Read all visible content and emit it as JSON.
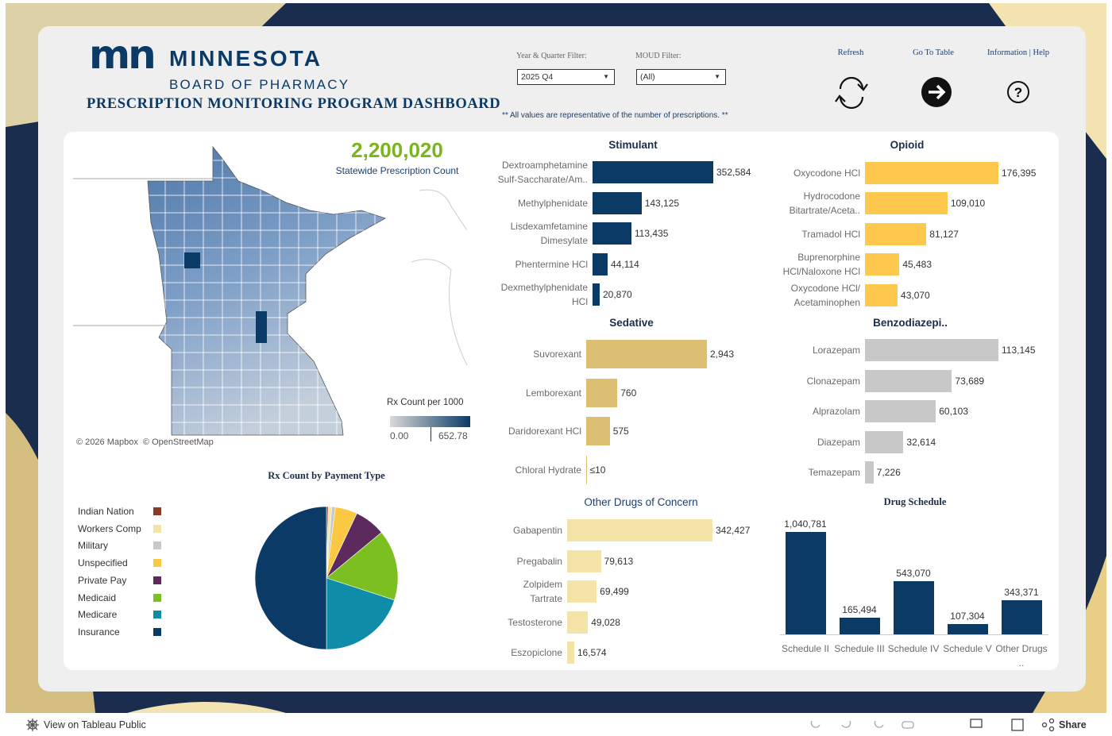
{
  "header": {
    "logo_mark": "mn",
    "logo_text": "MINNESOTA",
    "subtitle": "BOARD OF PHARMACY",
    "title": "PRESCRIPTION MONITORING PROGRAM DASHBOARD",
    "filters": [
      {
        "label": "Year & Quarter Filter:",
        "value": "2025 Q4"
      },
      {
        "label": "MOUD Filter:",
        "value": "(All)"
      }
    ],
    "buttons": [
      "Refresh",
      "Go To Table",
      "Information | Help"
    ],
    "note": "** All values are representative of the number of prescriptions. **"
  },
  "summary": {
    "value": "2,200,020",
    "label": "Statewide Prescription Count"
  },
  "map": {
    "legend_title": "Rx Count per 1000",
    "legend_min": "0.00",
    "legend_max": "652.78",
    "attribution": "© 2026 Mapbox  © OpenStreetMap"
  },
  "chart_data": [
    {
      "type": "bar",
      "orientation": "horizontal",
      "title": "Stimulant",
      "color": "#0b3a66",
      "categories": [
        "Dextroamphetamine Sulf-Saccharate/Am..",
        "Methylphenidate",
        "Lisdexamfetamine Dimesylate",
        "Phentermine HCl",
        "Dexmethylphenidate HCl"
      ],
      "values": [
        352584,
        143125,
        113435,
        44114,
        20870
      ],
      "value_labels": [
        "352,584",
        "143,125",
        "113,435",
        "44,114",
        "20,870"
      ]
    },
    {
      "type": "bar",
      "orientation": "horizontal",
      "title": "Opioid",
      "color": "#fec84d",
      "categories": [
        "Oxycodone HCl",
        "Hydrocodone Bitartrate/Aceta..",
        "Tramadol HCl",
        "Buprenorphine HCl/Naloxone HCl",
        "Oxycodone HCl/ Acetaminophen"
      ],
      "values": [
        176395,
        109010,
        81127,
        45483,
        43070
      ],
      "value_labels": [
        "176,395",
        "109,010",
        "81,127",
        "45,483",
        "43,070"
      ]
    },
    {
      "type": "bar",
      "orientation": "horizontal",
      "title": "Sedative",
      "color": "#dcbf72",
      "categories": [
        "Suvorexant",
        "Lemborexant",
        "Daridorexant HCl",
        "Chloral Hydrate"
      ],
      "values": [
        2943,
        760,
        575,
        10
      ],
      "value_labels": [
        "2,943",
        "760",
        "575",
        "≤10"
      ]
    },
    {
      "type": "bar",
      "orientation": "horizontal",
      "title": "Benzodiazepi..",
      "color": "#c8c8c8",
      "categories": [
        "Lorazepam",
        "Clonazepam",
        "Alprazolam",
        "Diazepam",
        "Temazepam"
      ],
      "values": [
        113145,
        73689,
        60103,
        32614,
        7226
      ],
      "value_labels": [
        "113,145",
        "73,689",
        "60,103",
        "32,614",
        "7,226"
      ]
    },
    {
      "type": "bar",
      "orientation": "horizontal",
      "title": "Other Drugs of Concern",
      "color": "#f5e4a8",
      "categories": [
        "Gabapentin",
        "Pregabalin",
        "Zolpidem Tartrate",
        "Testosterone",
        "Eszopiclone"
      ],
      "values": [
        342427,
        79613,
        69499,
        49028,
        16574
      ],
      "value_labels": [
        "342,427",
        "79,613",
        "69,499",
        "49,028",
        "16,574"
      ]
    },
    {
      "type": "pie",
      "title": "Rx Count by Payment Type",
      "categories": [
        "Indian Nation",
        "Workers Comp",
        "Military",
        "Unspecified",
        "Private Pay",
        "Medicaid",
        "Medicare",
        "Insurance"
      ],
      "values": [
        0.4,
        0.8,
        0.8,
        5,
        7,
        16,
        20,
        50
      ],
      "colors": [
        "#8b3a2a",
        "#f5e4a8",
        "#c8c8c8",
        "#fbc843",
        "#5c2a5c",
        "#7cbf20",
        "#0f8ca8",
        "#0b3a66"
      ]
    },
    {
      "type": "bar",
      "orientation": "vertical",
      "title": "Drug Schedule",
      "color": "#0b3a66",
      "categories": [
        "Schedule II",
        "Schedule III",
        "Schedule IV",
        "Schedule V",
        "Other Drugs .."
      ],
      "values": [
        1040781,
        165494,
        543070,
        107304,
        343371
      ],
      "value_labels": [
        "1,040,781",
        "165,494",
        "543,070",
        "107,304",
        "343,371"
      ]
    }
  ],
  "footer": {
    "link": "View on Tableau Public",
    "share": "Share"
  }
}
